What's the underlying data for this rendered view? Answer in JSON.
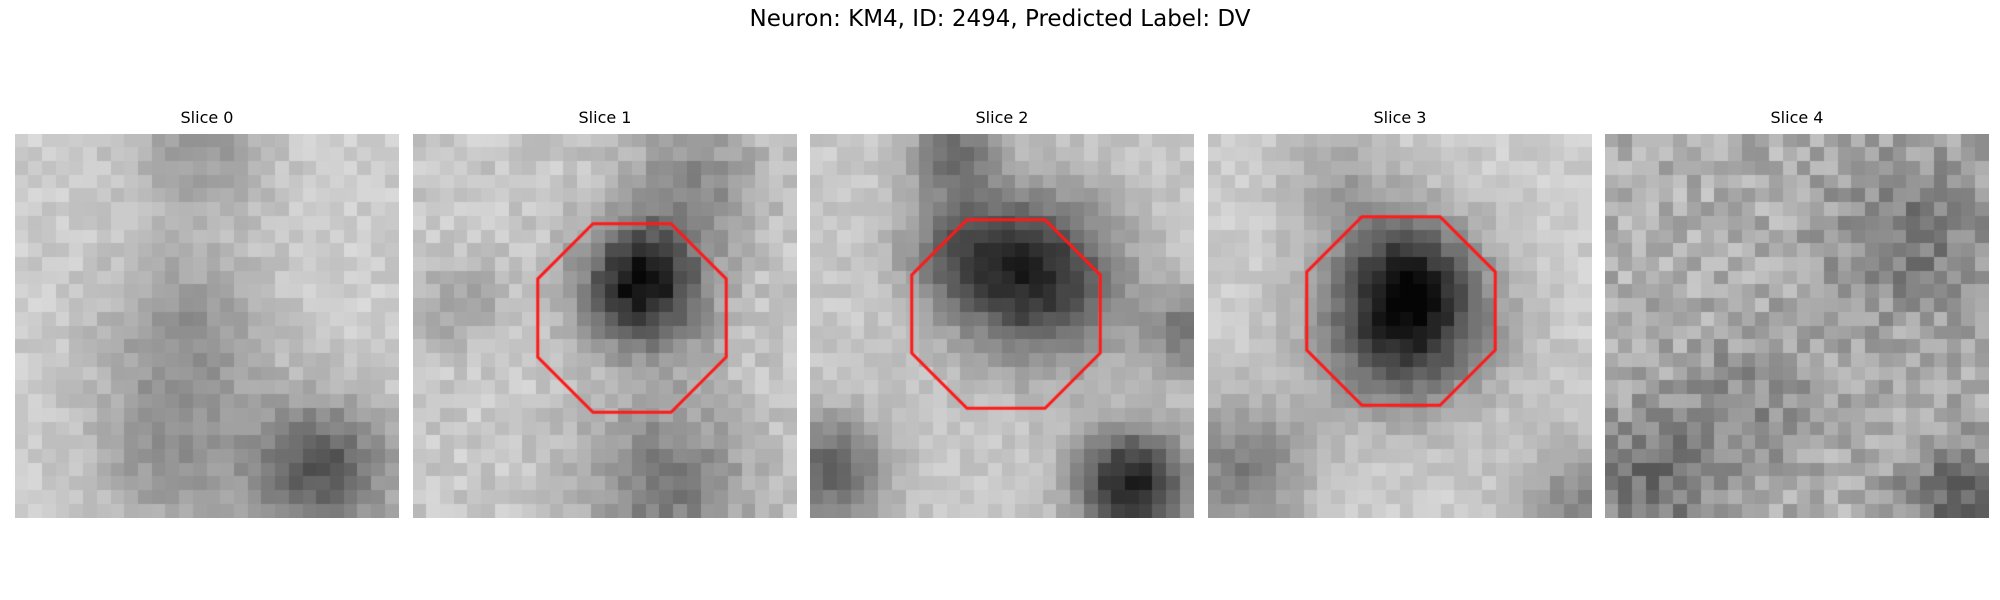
{
  "figure": {
    "title": "Neuron: KM4, ID: 2494, Predicted Label: DV"
  },
  "panels": [
    {
      "title": "Slice 0",
      "roi": false
    },
    {
      "title": "Slice 1",
      "roi": true
    },
    {
      "title": "Slice 2",
      "roi": true
    },
    {
      "title": "Slice 3",
      "roi": true
    },
    {
      "title": "Slice 4",
      "roi": false
    }
  ],
  "style": {
    "roi_color": "#ff1a1a",
    "colormap": "gray"
  }
}
